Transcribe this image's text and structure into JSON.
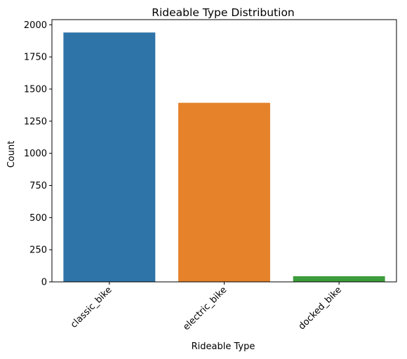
{
  "chart_data": {
    "type": "bar",
    "title": "Rideable Type Distribution",
    "xlabel": "Rideable Type",
    "ylabel": "Count",
    "categories": [
      "classic_bike",
      "electric_bike",
      "docked_bike"
    ],
    "values": [
      1940,
      1393,
      44
    ],
    "colors": [
      "#2f74a9",
      "#e5822a",
      "#3c9d3c"
    ],
    "ylim": [
      0,
      2040
    ],
    "yticks": [
      0,
      250,
      500,
      750,
      1000,
      1250,
      1500,
      1750,
      2000
    ],
    "grid": false,
    "legend": "none"
  }
}
